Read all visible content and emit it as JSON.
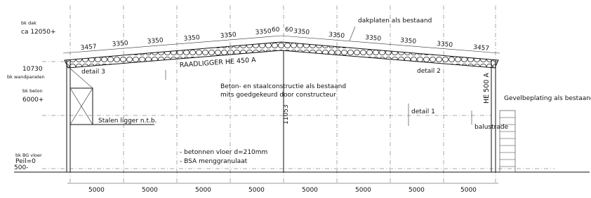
{
  "levels": [
    "bk dak",
    "ca 12050+",
    "10730",
    "bk wandpanelen",
    "bk beton",
    "6000+",
    "bk BG vloer",
    "Peil=0",
    "500-"
  ],
  "top_dimensions": [
    "3457",
    "3350",
    "3350",
    "3350",
    "3350",
    "3350",
    "60",
    "60",
    "3350",
    "3350",
    "3350",
    "3350",
    "3350",
    "3457"
  ],
  "bottom_dimensions": [
    "5000",
    "5000",
    "5000",
    "5000",
    "5000",
    "5000",
    "5000",
    "5000"
  ],
  "labels": {
    "roof": "dakplaten als bestaand",
    "girder": "RAADLIGGER HE 450 A",
    "detail_3": "detail 3",
    "detail_2": "detail 2",
    "detail_1": "detail 1",
    "note_1": "Beton- en staalconstructie als bestaand",
    "note_2": "mits goedgekeurd door constructeur",
    "column": "HE 500 A",
    "facade": "Gevelbeplating als bestaand",
    "balustrade": "balustrade",
    "beam": "Stalen ligger n.t.b.",
    "height": "11053",
    "floor_1": "- betonnen vloer d=210mm",
    "floor_2": "- BSA menggranulaat"
  }
}
